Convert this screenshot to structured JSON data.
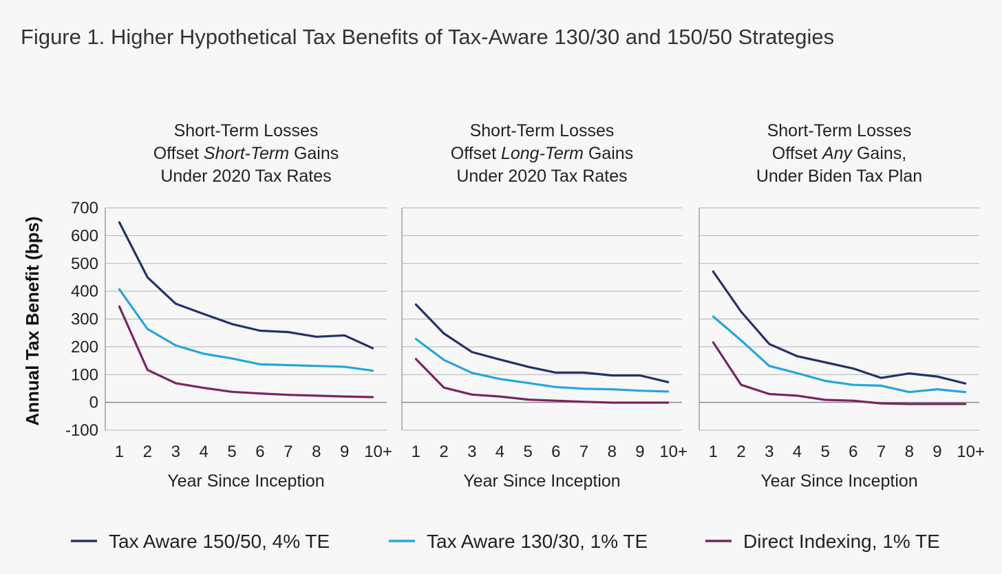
{
  "title": "Figure 1. Higher Hypothetical Tax Benefits of Tax-Aware 130/30 and 150/50 Strategies",
  "colors": {
    "Tax Aware 150/50, 4% TE": "#27306a",
    "Tax Aware 130/30, 1% TE": "#25a6dc",
    "Direct Indexing, 1% TE": "#7b2462"
  },
  "legend": [
    "Tax Aware 150/50, 4% TE",
    "Tax Aware 130/30, 1% TE",
    "Direct Indexing, 1% TE"
  ],
  "chart_data": [
    {
      "type": "line",
      "title_lines": [
        [
          {
            "t": "Short-Term Losses",
            "i": false
          }
        ],
        [
          {
            "t": "Offset ",
            "i": false
          },
          {
            "t": "Short-Term",
            "i": true
          },
          {
            "t": " Gains",
            "i": false
          }
        ],
        [
          {
            "t": "Under 2020 Tax Rates",
            "i": false
          }
        ]
      ],
      "xlabel": "Year Since Inception",
      "ylabel": "Annual Tax Benefit (bps)",
      "categories": [
        "1",
        "2",
        "3",
        "4",
        "5",
        "6",
        "7",
        "8",
        "9",
        "10+"
      ],
      "ylim": [
        -100,
        700
      ],
      "yticks": [
        -100,
        0,
        100,
        200,
        300,
        400,
        500,
        600,
        700
      ],
      "grid": true,
      "series": [
        {
          "name": "Tax Aware 150/50, 4% TE",
          "values": [
            648,
            450,
            355,
            318,
            282,
            258,
            253,
            236,
            241,
            195
          ]
        },
        {
          "name": "Tax Aware 130/30, 1% TE",
          "values": [
            407,
            264,
            205,
            175,
            158,
            137,
            134,
            131,
            128,
            114
          ]
        },
        {
          "name": "Direct Indexing, 1% TE",
          "values": [
            345,
            117,
            69,
            52,
            38,
            32,
            27,
            24,
            21,
            19
          ]
        }
      ]
    },
    {
      "type": "line",
      "title_lines": [
        [
          {
            "t": "Short-Term Losses",
            "i": false
          }
        ],
        [
          {
            "t": "Offset ",
            "i": false
          },
          {
            "t": "Long-Term",
            "i": true
          },
          {
            "t": " Gains",
            "i": false
          }
        ],
        [
          {
            "t": "Under 2020 Tax Rates",
            "i": false
          }
        ]
      ],
      "xlabel": "Year Since Inception",
      "categories": [
        "1",
        "2",
        "3",
        "4",
        "5",
        "6",
        "7",
        "8",
        "9",
        "10+"
      ],
      "ylim": [
        -100,
        700
      ],
      "grid": true,
      "series": [
        {
          "name": "Tax Aware 150/50, 4% TE",
          "values": [
            352,
            248,
            181,
            154,
            128,
            107,
            107,
            97,
            97,
            73
          ]
        },
        {
          "name": "Tax Aware 130/30, 1% TE",
          "values": [
            228,
            153,
            106,
            84,
            70,
            55,
            49,
            47,
            42,
            39
          ]
        },
        {
          "name": "Direct Indexing, 1% TE",
          "values": [
            156,
            53,
            28,
            21,
            10,
            6,
            2,
            -1,
            -1,
            -1
          ]
        }
      ]
    },
    {
      "type": "line",
      "title_lines": [
        [
          {
            "t": "Short-Term Losses",
            "i": false
          }
        ],
        [
          {
            "t": "Offset ",
            "i": false
          },
          {
            "t": "Any",
            "i": true
          },
          {
            "t": " Gains,",
            "i": false
          }
        ],
        [
          {
            "t": "Under Biden Tax Plan",
            "i": false
          }
        ]
      ],
      "xlabel": "Year Since Inception",
      "categories": [
        "1",
        "2",
        "3",
        "4",
        "5",
        "6",
        "7",
        "8",
        "9",
        "10+"
      ],
      "ylim": [
        -100,
        700
      ],
      "grid": true,
      "series": [
        {
          "name": "Tax Aware 150/50, 4% TE",
          "values": [
            471,
            326,
            210,
            166,
            144,
            122,
            88,
            104,
            93,
            68
          ]
        },
        {
          "name": "Tax Aware 130/30, 1% TE",
          "values": [
            309,
            223,
            131,
            105,
            77,
            63,
            60,
            37,
            47,
            37
          ]
        },
        {
          "name": "Direct Indexing, 1% TE",
          "values": [
            216,
            63,
            30,
            24,
            9,
            6,
            -4,
            -6,
            -6,
            -6
          ]
        }
      ]
    }
  ]
}
